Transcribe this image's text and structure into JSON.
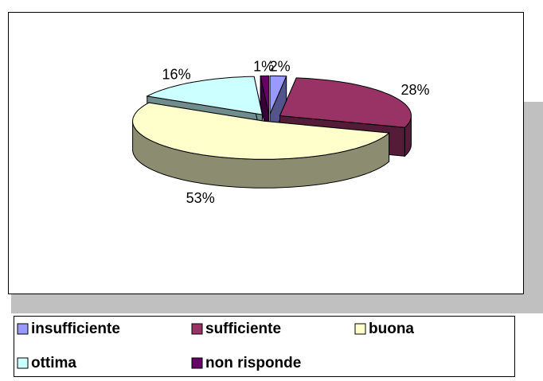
{
  "chart_data": {
    "type": "pie3d",
    "categories": [
      "insufficiente",
      "sufficiente",
      "buona",
      "ottima",
      "non risponde"
    ],
    "values": [
      2,
      28,
      53,
      16,
      1
    ],
    "value_labels": [
      "2%",
      "28%",
      "53%",
      "16%",
      "1%"
    ],
    "colors": [
      "#9999ff",
      "#993366",
      "#ffffcc",
      "#ccffff",
      "#660066"
    ],
    "legend": "bottom"
  }
}
